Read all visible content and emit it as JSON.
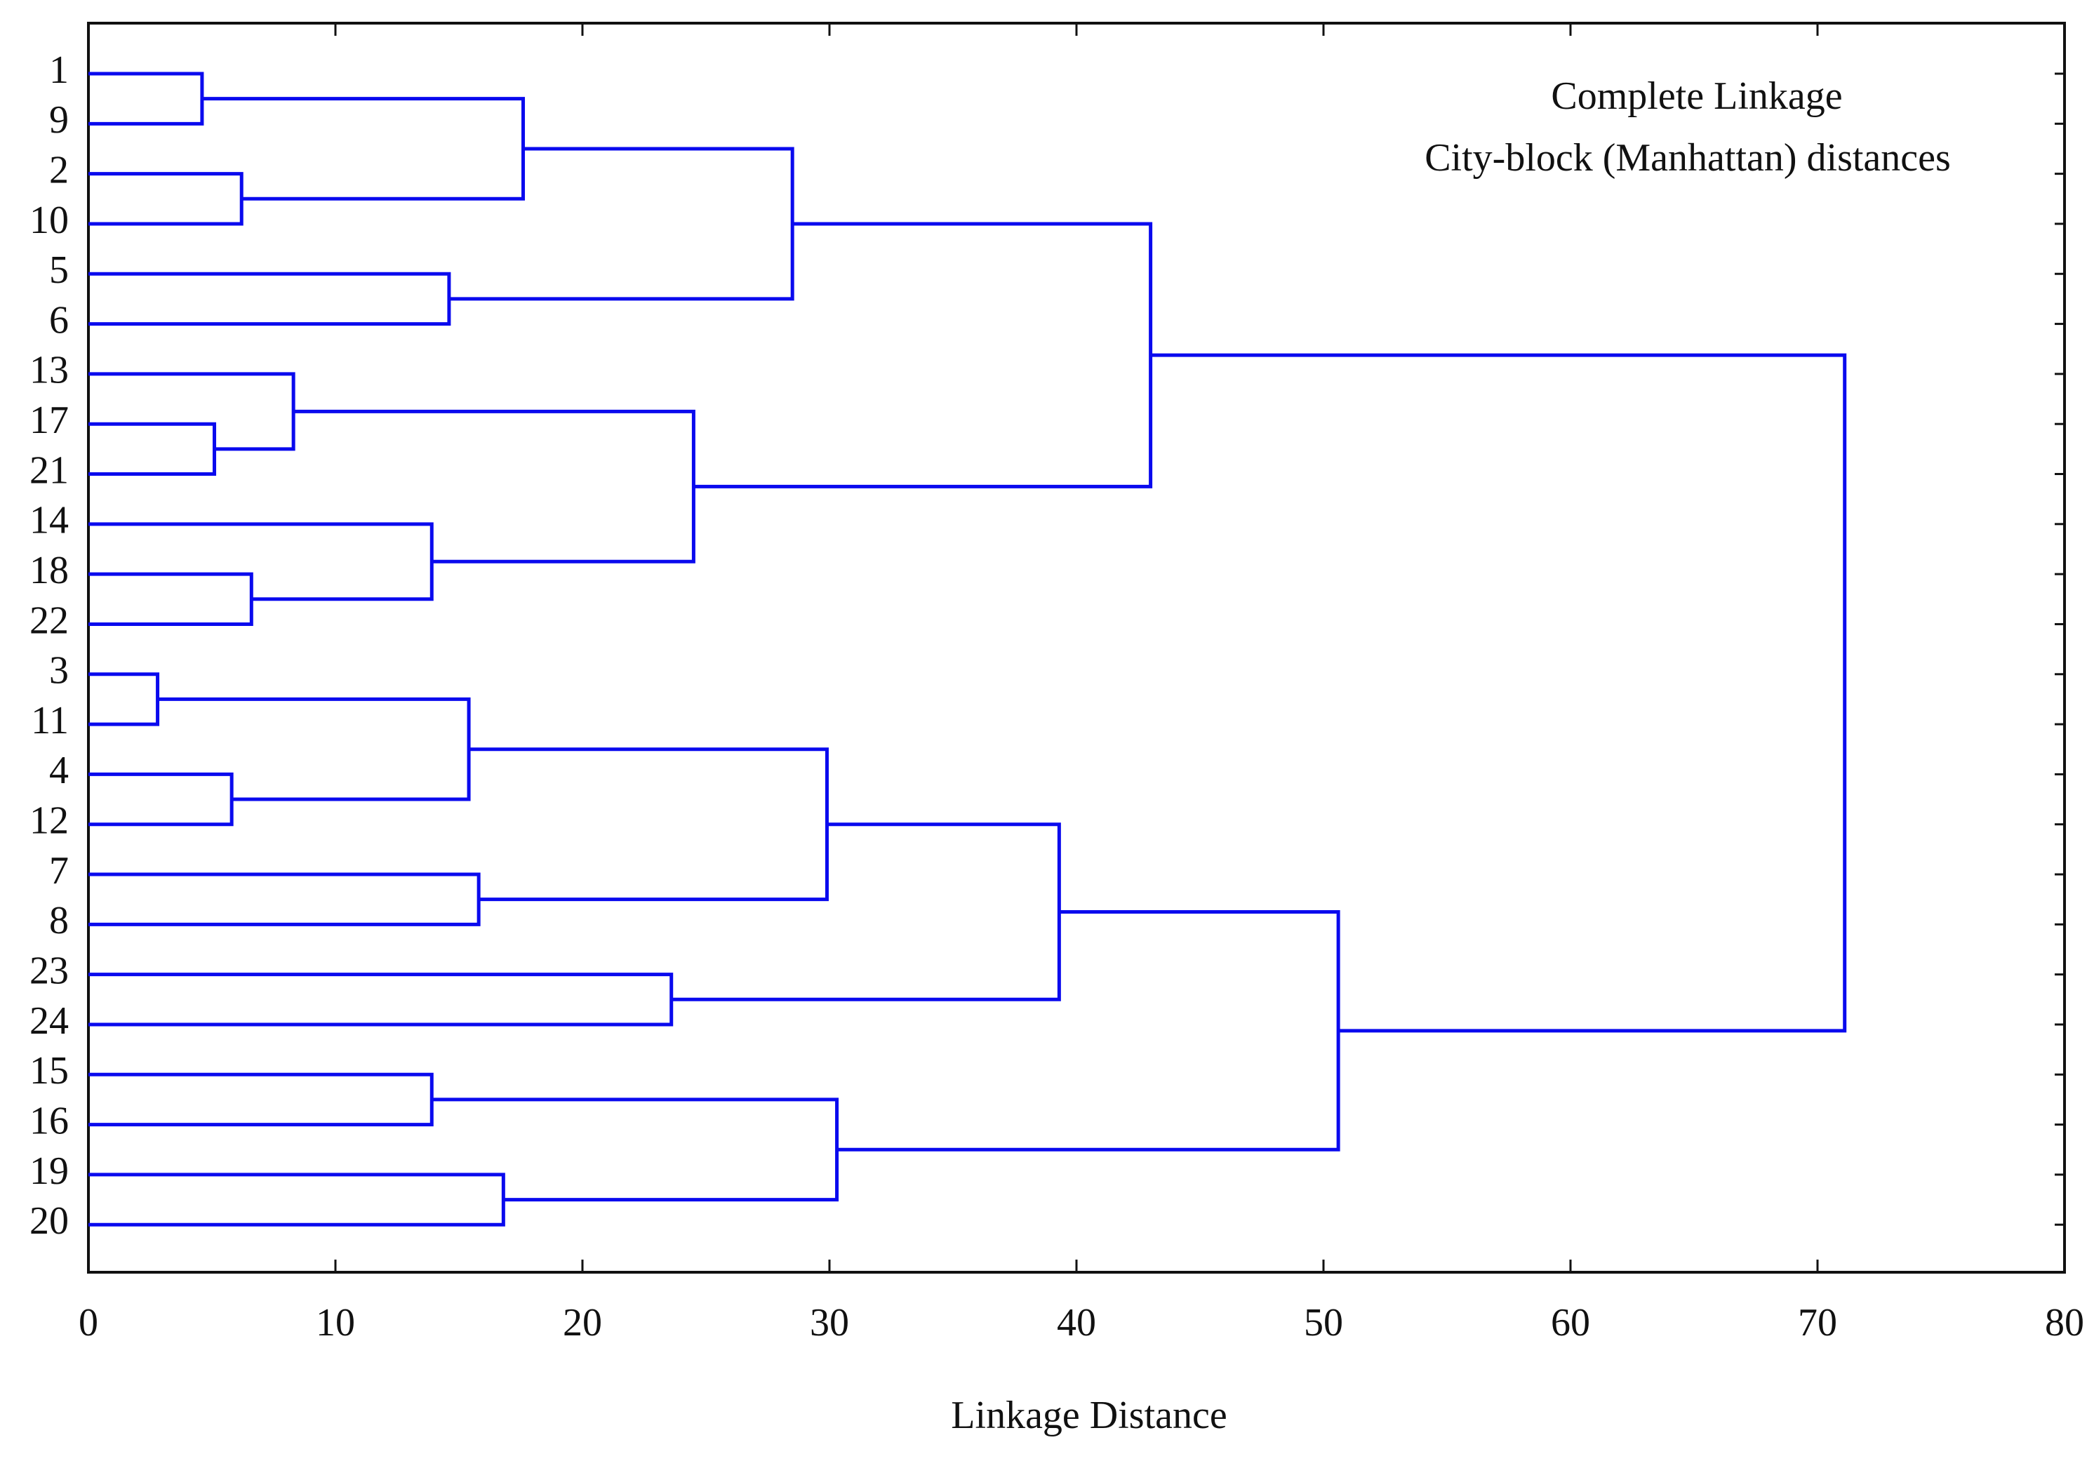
{
  "chart_data": {
    "type": "dendrogram",
    "annotations": [
      "Complete Linkage",
      "City-block (Manhattan) distances"
    ],
    "xlabel": "Linkage Distance",
    "color": "#0a0aee",
    "xlim": [
      0,
      80
    ],
    "xticks": [
      0,
      10,
      20,
      30,
      40,
      50,
      60,
      70,
      80
    ],
    "tree": {
      "height": 71.1,
      "children": [
        {
          "height": 43.0,
          "children": [
            {
              "height": 28.5,
              "children": [
                {
                  "height": 17.6,
                  "children": [
                    {
                      "height": 4.6,
                      "children": [
                        {
                          "label": "1"
                        },
                        {
                          "label": "9"
                        }
                      ]
                    },
                    {
                      "height": 6.2,
                      "children": [
                        {
                          "label": "2"
                        },
                        {
                          "label": "10"
                        }
                      ]
                    }
                  ]
                },
                {
                  "height": 14.6,
                  "children": [
                    {
                      "label": "5"
                    },
                    {
                      "label": "6"
                    }
                  ]
                }
              ]
            },
            {
              "height": 24.5,
              "children": [
                {
                  "height": 8.3,
                  "children": [
                    {
                      "label": "13"
                    },
                    {
                      "height": 5.1,
                      "children": [
                        {
                          "label": "17"
                        },
                        {
                          "label": "21"
                        }
                      ]
                    }
                  ]
                },
                {
                  "height": 13.9,
                  "children": [
                    {
                      "label": "14"
                    },
                    {
                      "height": 6.6,
                      "children": [
                        {
                          "label": "18"
                        },
                        {
                          "label": "22"
                        }
                      ]
                    }
                  ]
                }
              ]
            }
          ]
        },
        {
          "height": 50.6,
          "children": [
            {
              "height": 39.3,
              "children": [
                {
                  "height": 29.9,
                  "children": [
                    {
                      "height": 15.4,
                      "children": [
                        {
                          "height": 2.8,
                          "children": [
                            {
                              "label": "3"
                            },
                            {
                              "label": "11"
                            }
                          ]
                        },
                        {
                          "height": 5.8,
                          "children": [
                            {
                              "label": "4"
                            },
                            {
                              "label": "12"
                            }
                          ]
                        }
                      ]
                    },
                    {
                      "height": 15.8,
                      "children": [
                        {
                          "label": "7"
                        },
                        {
                          "label": "8"
                        }
                      ]
                    }
                  ]
                },
                {
                  "height": 23.6,
                  "children": [
                    {
                      "label": "23"
                    },
                    {
                      "label": "24"
                    }
                  ]
                }
              ]
            },
            {
              "height": 30.3,
              "children": [
                {
                  "height": 13.9,
                  "children": [
                    {
                      "label": "15"
                    },
                    {
                      "label": "16"
                    }
                  ]
                },
                {
                  "height": 16.8,
                  "children": [
                    {
                      "label": "19"
                    },
                    {
                      "label": "20"
                    }
                  ]
                }
              ]
            }
          ]
        }
      ]
    }
  }
}
